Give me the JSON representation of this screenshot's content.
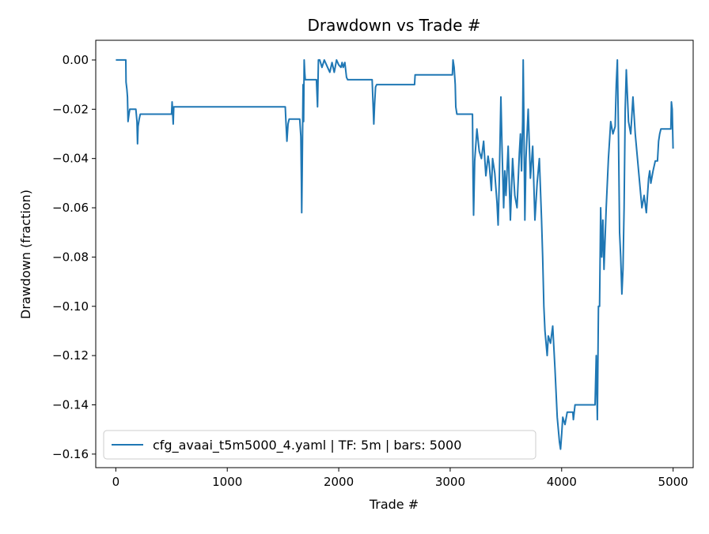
{
  "chart_data": {
    "type": "line",
    "title": "Drawdown vs Trade #",
    "xlabel": "Trade #",
    "ylabel": "Drawdown (fraction)",
    "xlim": [
      -180,
      5180
    ],
    "ylim": [
      -0.1655,
      0.008
    ],
    "xticks": [
      0,
      1000,
      2000,
      3000,
      4000,
      5000
    ],
    "xtick_labels": [
      "0",
      "1000",
      "2000",
      "3000",
      "4000",
      "5000"
    ],
    "yticks": [
      0.0,
      -0.02,
      -0.04,
      -0.06,
      -0.08,
      -0.1,
      -0.12,
      -0.14,
      -0.16
    ],
    "ytick_labels": [
      "0.00",
      "−0.02",
      "−0.04",
      "−0.06",
      "−0.08",
      "−0.10",
      "−0.12",
      "−0.14",
      "−0.16"
    ],
    "grid": false,
    "legend_position": "lower-left",
    "series": [
      {
        "name": "cfg_avaai_t5m5000_4.yaml | TF: 5m | bars: 5000",
        "color": "#1f77b4",
        "points": [
          [
            0,
            0
          ],
          [
            90,
            0
          ],
          [
            92,
            -0.009
          ],
          [
            100,
            -0.012
          ],
          [
            105,
            -0.015
          ],
          [
            110,
            -0.025
          ],
          [
            118,
            -0.022
          ],
          [
            125,
            -0.02
          ],
          [
            180,
            -0.02
          ],
          [
            190,
            -0.025
          ],
          [
            195,
            -0.034
          ],
          [
            200,
            -0.027
          ],
          [
            210,
            -0.024
          ],
          [
            220,
            -0.022
          ],
          [
            230,
            -0.022
          ],
          [
            500,
            -0.022
          ],
          [
            505,
            -0.017
          ],
          [
            515,
            -0.026
          ],
          [
            520,
            -0.019
          ],
          [
            1520,
            -0.019
          ],
          [
            1525,
            -0.024
          ],
          [
            1535,
            -0.033
          ],
          [
            1545,
            -0.026
          ],
          [
            1555,
            -0.024
          ],
          [
            1650,
            -0.024
          ],
          [
            1660,
            -0.031
          ],
          [
            1665,
            -0.049
          ],
          [
            1668,
            -0.062
          ],
          [
            1672,
            -0.045
          ],
          [
            1680,
            -0.01
          ],
          [
            1685,
            -0.025
          ],
          [
            1690,
            0
          ],
          [
            1695,
            -0.005
          ],
          [
            1700,
            -0.008
          ],
          [
            1800,
            -0.008
          ],
          [
            1810,
            -0.019
          ],
          [
            1818,
            0
          ],
          [
            1830,
            0
          ],
          [
            1850,
            -0.003
          ],
          [
            1870,
            0
          ],
          [
            1900,
            -0.003
          ],
          [
            1920,
            -0.005
          ],
          [
            1940,
            -0.001
          ],
          [
            1960,
            -0.005
          ],
          [
            1980,
            0
          ],
          [
            2000,
            -0.002
          ],
          [
            2020,
            -0.003
          ],
          [
            2030,
            -0.001
          ],
          [
            2040,
            -0.003
          ],
          [
            2055,
            -0.001
          ],
          [
            2070,
            -0.007
          ],
          [
            2080,
            -0.008
          ],
          [
            2300,
            -0.008
          ],
          [
            2305,
            -0.014
          ],
          [
            2315,
            -0.026
          ],
          [
            2322,
            -0.018
          ],
          [
            2330,
            -0.011
          ],
          [
            2340,
            -0.01
          ],
          [
            2680,
            -0.01
          ],
          [
            2685,
            -0.006
          ],
          [
            3020,
            -0.006
          ],
          [
            3025,
            0
          ],
          [
            3035,
            -0.003
          ],
          [
            3045,
            -0.01
          ],
          [
            3050,
            -0.019
          ],
          [
            3060,
            -0.022
          ],
          [
            3200,
            -0.022
          ],
          [
            3205,
            -0.048
          ],
          [
            3210,
            -0.063
          ],
          [
            3220,
            -0.041
          ],
          [
            3240,
            -0.028
          ],
          [
            3260,
            -0.037
          ],
          [
            3280,
            -0.04
          ],
          [
            3300,
            -0.033
          ],
          [
            3320,
            -0.047
          ],
          [
            3340,
            -0.039
          ],
          [
            3350,
            -0.042
          ],
          [
            3370,
            -0.053
          ],
          [
            3380,
            -0.04
          ],
          [
            3400,
            -0.046
          ],
          [
            3420,
            -0.058
          ],
          [
            3430,
            -0.067
          ],
          [
            3440,
            -0.05
          ],
          [
            3455,
            -0.015
          ],
          [
            3465,
            -0.035
          ],
          [
            3480,
            -0.06
          ],
          [
            3490,
            -0.045
          ],
          [
            3500,
            -0.055
          ],
          [
            3520,
            -0.035
          ],
          [
            3540,
            -0.065
          ],
          [
            3560,
            -0.04
          ],
          [
            3580,
            -0.055
          ],
          [
            3600,
            -0.06
          ],
          [
            3620,
            -0.038
          ],
          [
            3630,
            -0.03
          ],
          [
            3640,
            -0.045
          ],
          [
            3650,
            -0.025
          ],
          [
            3655,
            0
          ],
          [
            3660,
            -0.02
          ],
          [
            3670,
            -0.065
          ],
          [
            3680,
            -0.04
          ],
          [
            3700,
            -0.02
          ],
          [
            3720,
            -0.048
          ],
          [
            3740,
            -0.035
          ],
          [
            3760,
            -0.065
          ],
          [
            3780,
            -0.05
          ],
          [
            3800,
            -0.04
          ],
          [
            3820,
            -0.065
          ],
          [
            3830,
            -0.08
          ],
          [
            3840,
            -0.1
          ],
          [
            3850,
            -0.11
          ],
          [
            3860,
            -0.115
          ],
          [
            3870,
            -0.12
          ],
          [
            3880,
            -0.112
          ],
          [
            3900,
            -0.115
          ],
          [
            3920,
            -0.108
          ],
          [
            3940,
            -0.125
          ],
          [
            3960,
            -0.145
          ],
          [
            3980,
            -0.155
          ],
          [
            3990,
            -0.158
          ],
          [
            4000,
            -0.152
          ],
          [
            4010,
            -0.145
          ],
          [
            4030,
            -0.148
          ],
          [
            4050,
            -0.143
          ],
          [
            4100,
            -0.143
          ],
          [
            4105,
            -0.146
          ],
          [
            4120,
            -0.14
          ],
          [
            4300,
            -0.14
          ],
          [
            4310,
            -0.12
          ],
          [
            4320,
            -0.146
          ],
          [
            4330,
            -0.1
          ],
          [
            4340,
            -0.1
          ],
          [
            4350,
            -0.06
          ],
          [
            4360,
            -0.08
          ],
          [
            4370,
            -0.065
          ],
          [
            4380,
            -0.085
          ],
          [
            4400,
            -0.06
          ],
          [
            4420,
            -0.04
          ],
          [
            4440,
            -0.025
          ],
          [
            4460,
            -0.03
          ],
          [
            4480,
            -0.027
          ],
          [
            4490,
            -0.01
          ],
          [
            4500,
            0
          ],
          [
            4510,
            -0.03
          ],
          [
            4520,
            -0.07
          ],
          [
            4530,
            -0.08
          ],
          [
            4540,
            -0.095
          ],
          [
            4550,
            -0.085
          ],
          [
            4560,
            -0.06
          ],
          [
            4570,
            -0.02
          ],
          [
            4580,
            -0.004
          ],
          [
            4600,
            -0.025
          ],
          [
            4620,
            -0.03
          ],
          [
            4640,
            -0.015
          ],
          [
            4660,
            -0.03
          ],
          [
            4680,
            -0.04
          ],
          [
            4700,
            -0.05
          ],
          [
            4720,
            -0.06
          ],
          [
            4740,
            -0.055
          ],
          [
            4760,
            -0.062
          ],
          [
            4780,
            -0.048
          ],
          [
            4790,
            -0.045
          ],
          [
            4800,
            -0.05
          ],
          [
            4820,
            -0.045
          ],
          [
            4840,
            -0.041
          ],
          [
            4860,
            -0.041
          ],
          [
            4870,
            -0.033
          ],
          [
            4880,
            -0.03
          ],
          [
            4890,
            -0.028
          ],
          [
            4980,
            -0.028
          ],
          [
            4985,
            -0.017
          ],
          [
            4992,
            -0.02
          ],
          [
            5000,
            -0.036
          ]
        ]
      }
    ]
  }
}
